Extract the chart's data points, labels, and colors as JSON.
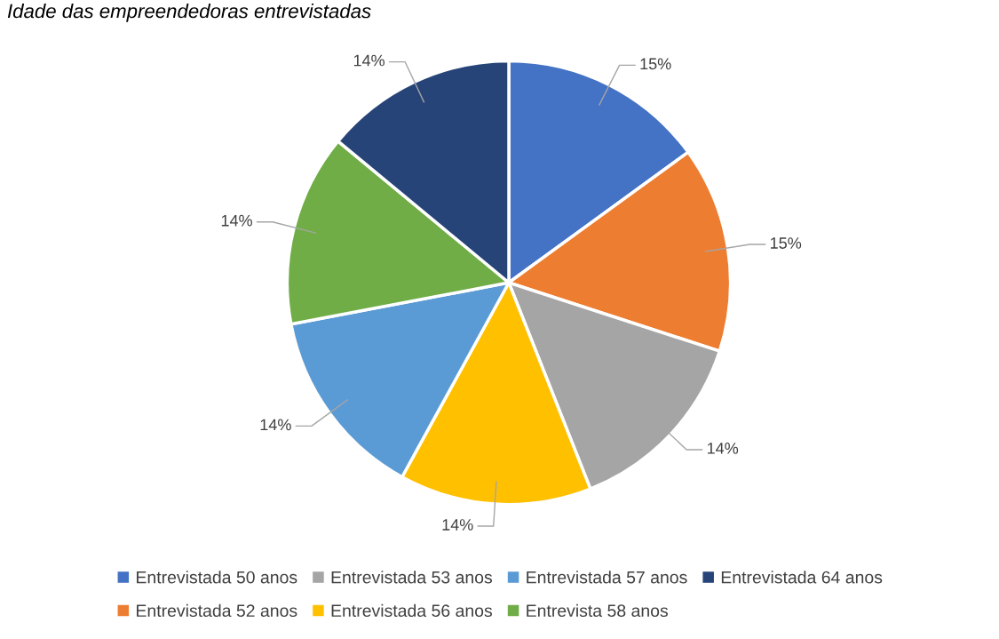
{
  "chart_data": {
    "type": "pie",
    "title": "Idade das empreendedoras entrevistadas",
    "categories": [
      "Entrevistada 50 anos",
      "Entrevistada 52 anos",
      "Entrevistada 53 anos",
      "Entrevistada 56 anos",
      "Entrevistada 57 anos",
      "Entrevista 58 anos",
      "Entrevistada 64 anos"
    ],
    "values": [
      15,
      15,
      14,
      14,
      14,
      14,
      14
    ],
    "value_labels": [
      "15%",
      "15%",
      "14%",
      "14%",
      "14%",
      "14%",
      "14%"
    ],
    "colors": [
      "#4472c4",
      "#ed7d31",
      "#a5a5a5",
      "#ffc000",
      "#5b9bd5",
      "#70ad47",
      "#264478"
    ],
    "legend": "bottom"
  }
}
